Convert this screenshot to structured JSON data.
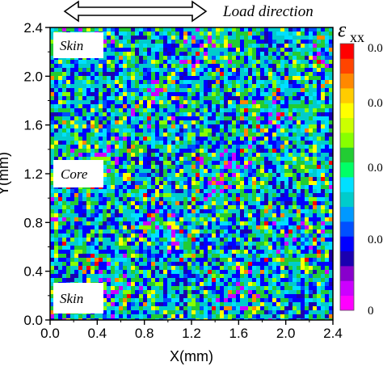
{
  "chart_data": {
    "type": "heatmap",
    "title": "",
    "xlabel": "X(mm)",
    "ylabel": "Y(mm)",
    "xlim": [
      0.0,
      2.4
    ],
    "ylim": [
      0.0,
      2.4
    ],
    "x_ticks": [
      "0.0",
      "0.4",
      "0.8",
      "1.2",
      "1.6",
      "2.0",
      "2.4"
    ],
    "y_ticks": [
      "0.0",
      "0.4",
      "0.8",
      "1.2",
      "1.6",
      "2.0",
      "2.4"
    ],
    "annotations": {
      "load_direction": "Load direction",
      "region_top": "Skin",
      "region_middle": "Core",
      "region_bottom": "Skin"
    },
    "colorbar": {
      "symbol": "ε",
      "subscript": "xx",
      "tick_labels": [
        "0",
        "0.0",
        "0.0",
        "0.0",
        "0.0",
        "0.0"
      ],
      "colors": [
        "#ff00ff",
        "#cc00ff",
        "#8800cc",
        "#1a00b0",
        "#0000ff",
        "#0050ff",
        "#0099ff",
        "#00cccc",
        "#00e0ff",
        "#00ff66",
        "#22cc33",
        "#88ff00",
        "#ccff00",
        "#ffff00",
        "#ffcc00",
        "#ff8800",
        "#ff4400",
        "#ff0000"
      ],
      "dominant_colors": [
        "#00ccff",
        "#2db34a",
        "#0000ff",
        "#00e0ff"
      ]
    }
  }
}
